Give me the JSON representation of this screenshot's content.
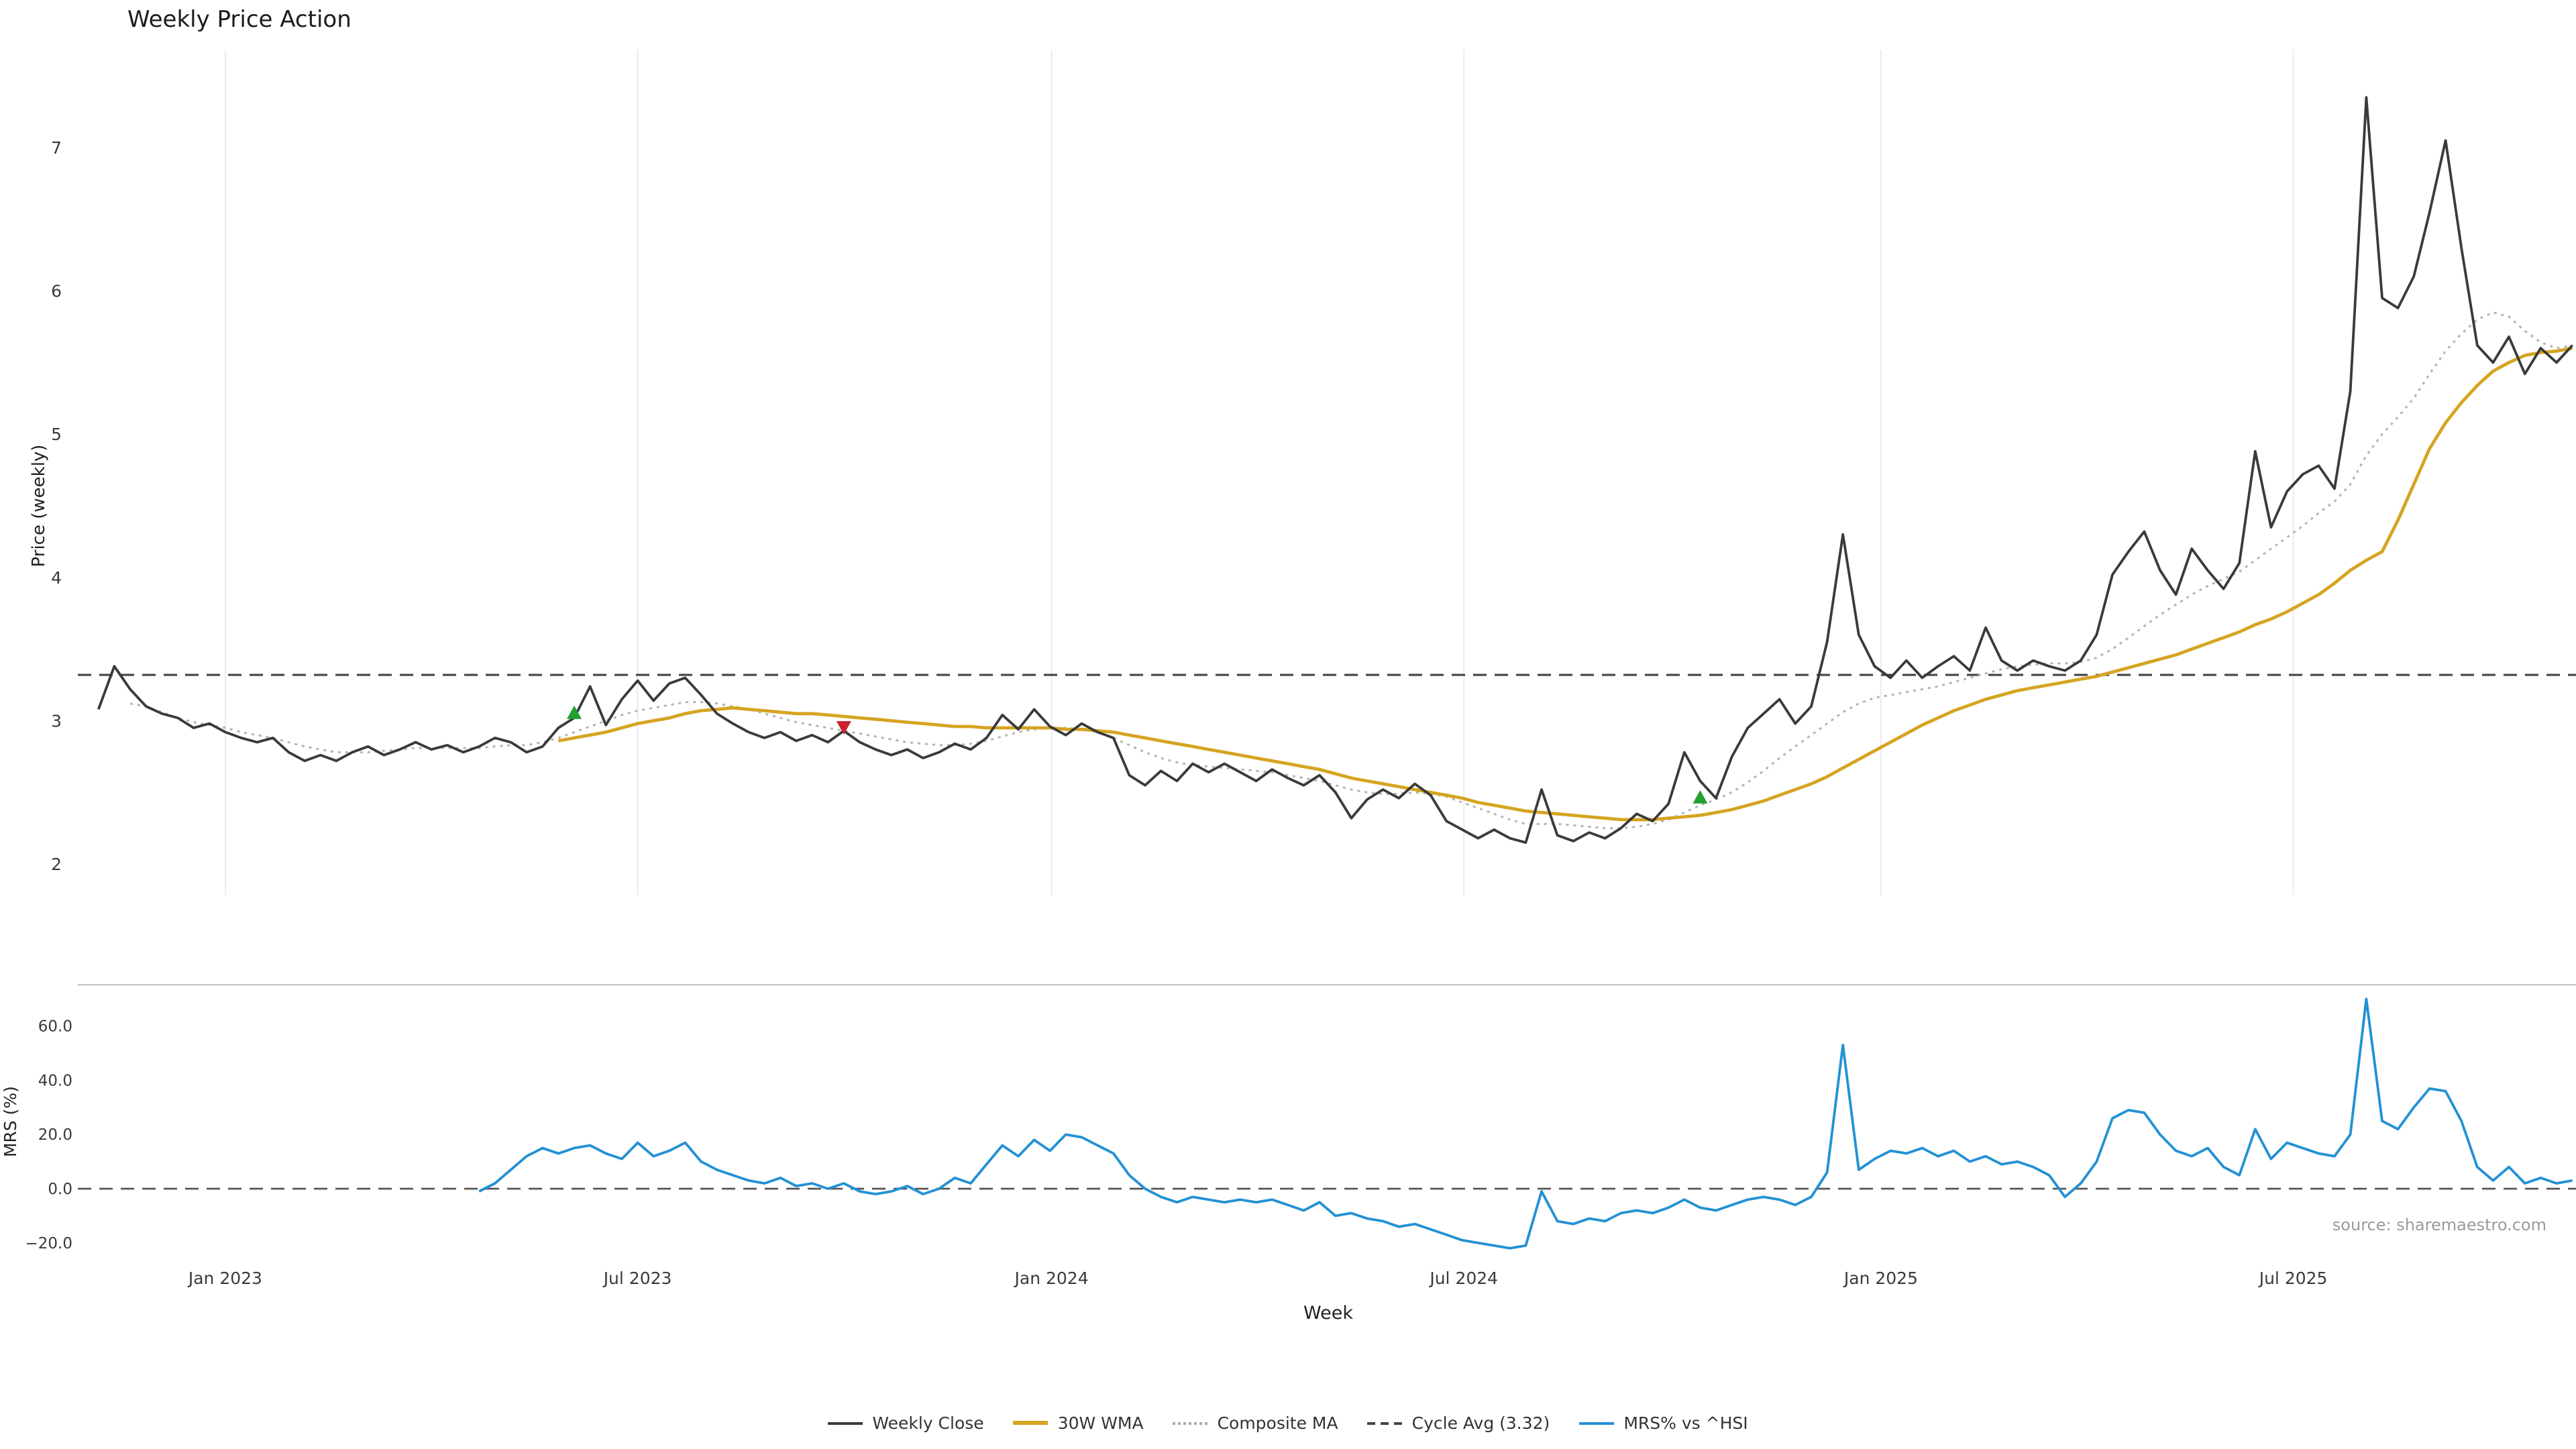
{
  "page": {
    "title": "Weekly Price Action"
  },
  "chart_data": {
    "type": "line",
    "title": "Weekly Price Action",
    "xlabel": "Week",
    "source": "source: sharemaestro.com",
    "x_unit": "weekly index (week 0 = first plotted week, late 2022)",
    "n_weeks": 157,
    "xticks": [
      {
        "label": "Jan 2023",
        "week": 8
      },
      {
        "label": "Jul 2023",
        "week": 34
      },
      {
        "label": "Jan 2024",
        "week": 60.1
      },
      {
        "label": "Jul 2024",
        "week": 86.1
      },
      {
        "label": "Jan 2025",
        "week": 112.4
      },
      {
        "label": "Jul 2025",
        "week": 138.4
      }
    ],
    "colors": {
      "weekly_close": "#3a3a3a",
      "wma_30w": "#d5a421",
      "composite_ma": "#b3b3b3",
      "cycle_avg": "#444444",
      "mrs": "#2391d4",
      "buy": "#22a032",
      "sell": "#c8232f",
      "grid": "#ebebeb",
      "spine": "#c0c0c0"
    },
    "price_panel": {
      "ylabel": "Price (weekly)",
      "ylim": [
        1.78,
        7.75
      ],
      "yticks": [
        2,
        3,
        4,
        5,
        6,
        7
      ],
      "cycle_avg": 3.32,
      "grid": "vertical-only",
      "series": {
        "weekly_close": [
          3.08,
          3.38,
          3.22,
          3.1,
          3.05,
          3.02,
          2.95,
          2.98,
          2.92,
          2.88,
          2.85,
          2.88,
          2.78,
          2.72,
          2.76,
          2.72,
          2.78,
          2.82,
          2.76,
          2.8,
          2.85,
          2.8,
          2.83,
          2.78,
          2.82,
          2.88,
          2.85,
          2.78,
          2.82,
          2.95,
          3.02,
          3.24,
          2.97,
          3.15,
          3.28,
          3.14,
          3.26,
          3.3,
          3.18,
          3.05,
          2.98,
          2.92,
          2.88,
          2.92,
          2.86,
          2.9,
          2.85,
          2.93,
          2.85,
          2.8,
          2.76,
          2.8,
          2.74,
          2.78,
          2.84,
          2.8,
          2.88,
          3.04,
          2.94,
          3.08,
          2.96,
          2.9,
          2.98,
          2.92,
          2.88,
          2.62,
          2.55,
          2.65,
          2.58,
          2.7,
          2.64,
          2.7,
          2.64,
          2.58,
          2.66,
          2.6,
          2.55,
          2.62,
          2.5,
          2.32,
          2.45,
          2.52,
          2.46,
          2.56,
          2.48,
          2.3,
          2.24,
          2.18,
          2.24,
          2.18,
          2.15,
          2.52,
          2.2,
          2.16,
          2.22,
          2.18,
          2.25,
          2.35,
          2.3,
          2.42,
          2.78,
          2.58,
          2.46,
          2.75,
          2.95,
          3.05,
          3.15,
          2.98,
          3.1,
          3.55,
          4.3,
          3.6,
          3.38,
          3.3,
          3.42,
          3.3,
          3.38,
          3.45,
          3.35,
          3.65,
          3.42,
          3.35,
          3.42,
          3.38,
          3.35,
          3.42,
          3.6,
          4.02,
          4.18,
          4.32,
          4.05,
          3.88,
          4.2,
          4.05,
          3.92,
          4.1,
          4.88,
          4.35,
          4.6,
          4.72,
          4.78,
          4.62,
          5.3,
          7.35,
          5.95,
          5.88,
          6.1,
          6.55,
          7.05,
          6.3,
          5.62,
          5.5,
          5.68,
          5.42,
          5.6,
          5.5,
          5.62
        ],
        "wma_30w": [
          null,
          null,
          null,
          null,
          null,
          null,
          null,
          null,
          null,
          null,
          null,
          null,
          null,
          null,
          null,
          null,
          null,
          null,
          null,
          null,
          null,
          null,
          null,
          null,
          null,
          null,
          null,
          null,
          null,
          2.86,
          2.88,
          2.9,
          2.92,
          2.95,
          2.98,
          3.0,
          3.02,
          3.05,
          3.07,
          3.08,
          3.09,
          3.08,
          3.07,
          3.06,
          3.05,
          3.05,
          3.04,
          3.03,
          3.02,
          3.01,
          3.0,
          2.99,
          2.98,
          2.97,
          2.96,
          2.96,
          2.95,
          2.95,
          2.95,
          2.95,
          2.95,
          2.94,
          2.94,
          2.93,
          2.92,
          2.9,
          2.88,
          2.86,
          2.84,
          2.82,
          2.8,
          2.78,
          2.76,
          2.74,
          2.72,
          2.7,
          2.68,
          2.66,
          2.63,
          2.6,
          2.58,
          2.56,
          2.54,
          2.52,
          2.5,
          2.48,
          2.46,
          2.43,
          2.41,
          2.39,
          2.37,
          2.36,
          2.35,
          2.34,
          2.33,
          2.32,
          2.31,
          2.31,
          2.31,
          2.32,
          2.33,
          2.34,
          2.36,
          2.38,
          2.41,
          2.44,
          2.48,
          2.52,
          2.56,
          2.61,
          2.67,
          2.73,
          2.79,
          2.85,
          2.91,
          2.97,
          3.02,
          3.07,
          3.11,
          3.15,
          3.18,
          3.21,
          3.23,
          3.25,
          3.27,
          3.29,
          3.31,
          3.34,
          3.37,
          3.4,
          3.43,
          3.46,
          3.5,
          3.54,
          3.58,
          3.62,
          3.67,
          3.71,
          3.76,
          3.82,
          3.88,
          3.96,
          4.05,
          4.12,
          4.18,
          4.4,
          4.65,
          4.9,
          5.08,
          5.22,
          5.34,
          5.44,
          5.5,
          5.55,
          5.57,
          5.58,
          5.6
        ],
        "composite_ma": [
          null,
          null,
          3.12,
          3.1,
          3.06,
          3.02,
          2.99,
          2.97,
          2.95,
          2.92,
          2.9,
          2.88,
          2.85,
          2.82,
          2.8,
          2.78,
          2.78,
          2.78,
          2.79,
          2.8,
          2.81,
          2.81,
          2.81,
          2.81,
          2.81,
          2.82,
          2.83,
          2.83,
          2.85,
          2.88,
          2.92,
          2.96,
          3.0,
          3.04,
          3.07,
          3.09,
          3.11,
          3.13,
          3.13,
          3.12,
          3.1,
          3.08,
          3.05,
          3.02,
          2.99,
          2.97,
          2.95,
          2.93,
          2.91,
          2.89,
          2.87,
          2.85,
          2.84,
          2.83,
          2.83,
          2.84,
          2.86,
          2.89,
          2.92,
          2.94,
          2.95,
          2.95,
          2.94,
          2.92,
          2.88,
          2.83,
          2.78,
          2.74,
          2.71,
          2.69,
          2.68,
          2.67,
          2.66,
          2.65,
          2.64,
          2.62,
          2.6,
          2.58,
          2.55,
          2.52,
          2.5,
          2.49,
          2.49,
          2.5,
          2.49,
          2.47,
          2.43,
          2.39,
          2.35,
          2.31,
          2.28,
          2.28,
          2.28,
          2.27,
          2.26,
          2.25,
          2.25,
          2.26,
          2.28,
          2.31,
          2.36,
          2.41,
          2.45,
          2.5,
          2.57,
          2.65,
          2.74,
          2.82,
          2.9,
          2.98,
          3.06,
          3.12,
          3.16,
          3.18,
          3.2,
          3.22,
          3.24,
          3.27,
          3.3,
          3.33,
          3.36,
          3.38,
          3.39,
          3.4,
          3.4,
          3.41,
          3.44,
          3.5,
          3.58,
          3.66,
          3.74,
          3.81,
          3.88,
          3.94,
          3.99,
          4.04,
          4.12,
          4.2,
          4.28,
          4.36,
          4.45,
          4.53,
          4.65,
          4.85,
          5.0,
          5.12,
          5.25,
          5.42,
          5.58,
          5.7,
          5.8,
          5.85,
          5.82,
          5.72,
          5.64,
          5.6,
          5.62
        ]
      },
      "signals": [
        {
          "week": 30,
          "price": 3.05,
          "type": "buy"
        },
        {
          "week": 47,
          "price": 2.96,
          "type": "sell"
        },
        {
          "week": 101,
          "price": 2.46,
          "type": "buy"
        }
      ]
    },
    "mrs_panel": {
      "ylabel": "MRS (%)",
      "ylim": [
        -28,
        75
      ],
      "yticks": [
        60,
        40,
        20,
        0,
        -20
      ],
      "ytick_labels": [
        "60.0",
        "40.0",
        "20.0",
        "0.0",
        "−20.0"
      ],
      "zero_line": 0,
      "series": {
        "mrs_pct": [
          null,
          null,
          null,
          null,
          null,
          null,
          null,
          null,
          null,
          null,
          null,
          null,
          null,
          null,
          null,
          null,
          null,
          null,
          null,
          null,
          null,
          null,
          null,
          null,
          -1,
          2,
          7,
          12,
          15,
          13,
          15,
          16,
          13,
          11,
          17,
          12,
          14,
          17,
          10,
          7,
          5,
          3,
          2,
          4,
          1,
          2,
          0,
          2,
          -1,
          -2,
          -1,
          1,
          -2,
          0,
          4,
          2,
          9,
          16,
          12,
          18,
          14,
          20,
          19,
          16,
          13,
          5,
          0,
          -3,
          -5,
          -3,
          -4,
          -5,
          -4,
          -5,
          -4,
          -6,
          -8,
          -5,
          -10,
          -9,
          -11,
          -12,
          -14,
          -13,
          -15,
          -17,
          -19,
          -20,
          -21,
          -22,
          -21,
          -1,
          -12,
          -13,
          -11,
          -12,
          -9,
          -8,
          -9,
          -7,
          -4,
          -7,
          -8,
          -6,
          -4,
          -3,
          -4,
          -6,
          -3,
          6,
          53,
          7,
          11,
          14,
          13,
          15,
          12,
          14,
          10,
          12,
          9,
          10,
          8,
          5,
          -3,
          2,
          10,
          26,
          29,
          28,
          20,
          14,
          12,
          15,
          8,
          5,
          22,
          11,
          17,
          15,
          13,
          12,
          20,
          70,
          25,
          22,
          30,
          37,
          36,
          25,
          8,
          3,
          8,
          2,
          4,
          2,
          3
        ]
      }
    },
    "legend": {
      "position": "bottom-center",
      "items": [
        {
          "label": "Weekly Close",
          "style": "solid",
          "color": "#3a3a3a"
        },
        {
          "label": "30W WMA",
          "style": "solid",
          "color": "#d5a421"
        },
        {
          "label": "Composite MA",
          "style": "dotted",
          "color": "#b3b3b3"
        },
        {
          "label": "Cycle Avg (3.32)",
          "style": "dashed",
          "color": "#444444"
        },
        {
          "label": "MRS% vs ^HSI",
          "style": "solid",
          "color": "#2391d4"
        }
      ]
    }
  }
}
